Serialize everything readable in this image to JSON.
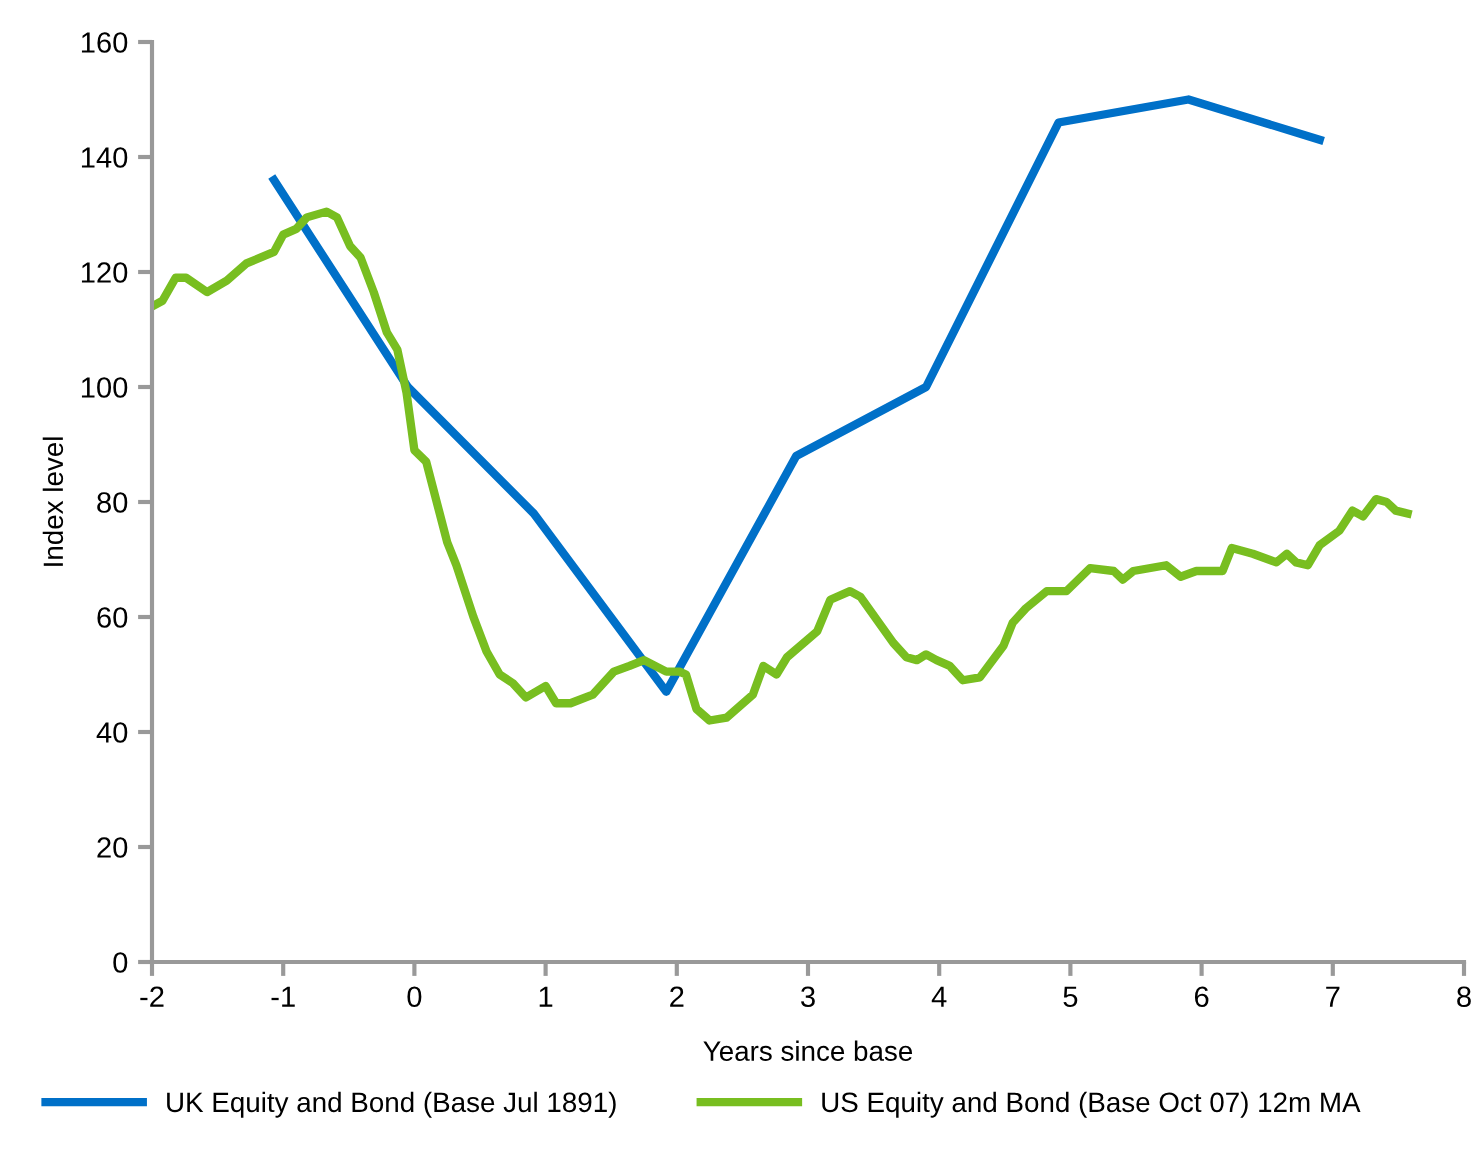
{
  "chart_data": {
    "type": "line",
    "xlabel": "Years since base",
    "ylabel": "Index level",
    "xlim": [
      -2,
      8
    ],
    "xticks": [
      -2,
      -1,
      0,
      1,
      2,
      3,
      4,
      5,
      6,
      7,
      8
    ],
    "ylim": [
      0,
      160
    ],
    "yticks": [
      0,
      20,
      40,
      60,
      80,
      100,
      120,
      140,
      160
    ],
    "grid": false,
    "legend": "bottom",
    "marker": "none",
    "line_style": "solid",
    "series": [
      {
        "name": "UK Equity and Bond (Base Jul 1891)",
        "color": "#0070c8",
        "x": [
          -1.07,
          -0.05,
          0.91,
          1.92,
          2.91,
          3.9,
          4.91,
          5.9,
          6.9
        ],
        "values": [
          136,
          100,
          78,
          47,
          88,
          100,
          146,
          150,
          143
        ]
      },
      {
        "name": "US Equity and Bond (Base Oct 07) 12m MA",
        "color": "#78be20",
        "x": [
          -2.0,
          -1.92,
          -1.82,
          -1.74,
          -1.58,
          -1.43,
          -1.28,
          -1.07,
          -1.0,
          -0.9,
          -0.82,
          -0.67,
          -0.59,
          -0.49,
          -0.41,
          -0.31,
          -0.21,
          -0.13,
          -0.06,
          0.0,
          0.09,
          0.25,
          0.32,
          0.45,
          0.55,
          0.65,
          0.75,
          0.85,
          1.0,
          1.08,
          1.19,
          1.36,
          1.52,
          1.64,
          1.75,
          1.92,
          2.02,
          2.07,
          2.15,
          2.25,
          2.38,
          2.58,
          2.66,
          2.76,
          2.84,
          3.07,
          3.17,
          3.32,
          3.4,
          3.65,
          3.75,
          3.83,
          3.9,
          3.98,
          4.08,
          4.18,
          4.31,
          4.49,
          4.56,
          4.66,
          4.82,
          4.97,
          5.15,
          5.33,
          5.4,
          5.48,
          5.73,
          5.84,
          5.96,
          6.16,
          6.23,
          6.39,
          6.57,
          6.65,
          6.72,
          6.81,
          6.9,
          7.05,
          7.15,
          7.23,
          7.33,
          7.41,
          7.48,
          7.57
        ],
        "values": [
          114,
          115,
          119,
          119,
          116.5,
          118.5,
          121.5,
          123.5,
          126.5,
          127.5,
          129.5,
          130.5,
          129.5,
          124.5,
          122.5,
          116.5,
          109.5,
          106.5,
          99,
          89,
          87,
          73,
          69,
          60,
          54,
          50,
          48.5,
          46,
          48,
          45,
          45,
          46.5,
          50.5,
          51.5,
          52.5,
          50.5,
          50.5,
          50,
          44,
          42,
          42.5,
          46.5,
          51.5,
          50,
          53,
          57.5,
          63,
          64.5,
          63.5,
          55.5,
          53,
          52.5,
          53.5,
          52.5,
          51.5,
          49,
          49.5,
          55,
          59,
          61.5,
          64.5,
          64.5,
          68.5,
          68,
          66.5,
          68,
          69,
          67,
          68,
          68,
          72,
          71,
          69.5,
          71,
          69.5,
          69,
          72.5,
          75,
          78.5,
          77.5,
          80.5,
          80,
          78.5,
          78
        ]
      }
    ]
  }
}
